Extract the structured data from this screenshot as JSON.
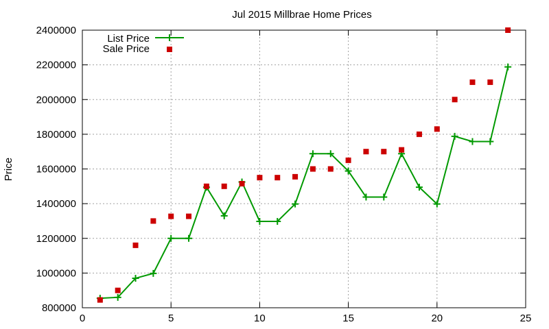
{
  "chart_data": {
    "type": "line",
    "title": "Jul 2015 Millbrae Home Prices",
    "xlabel": "",
    "ylabel": "Price",
    "xlim": [
      0,
      25
    ],
    "ylim": [
      800000,
      2400000
    ],
    "xticks": [
      0,
      5,
      10,
      15,
      20,
      25
    ],
    "yticks": [
      800000,
      1000000,
      1200000,
      1400000,
      1600000,
      1800000,
      2000000,
      2200000,
      2400000
    ],
    "xtick_labels": [
      "0",
      "5",
      "10",
      "15",
      "20",
      "25"
    ],
    "ytick_labels": [
      "800000",
      "1000000",
      "1200000",
      "1400000",
      "1600000",
      "1800000",
      "2000000",
      "2200000",
      "2400000"
    ],
    "grid": true,
    "legend_position": "top-left",
    "x": [
      1,
      2,
      3,
      4,
      5,
      6,
      7,
      8,
      9,
      10,
      11,
      12,
      13,
      14,
      15,
      16,
      17,
      18,
      19,
      20,
      21,
      22,
      23,
      24
    ],
    "series": [
      {
        "name": "List Price",
        "style": "line-with-plus-markers",
        "color": "#009900",
        "values": [
          855000,
          860000,
          970000,
          998000,
          1200000,
          1200000,
          1495000,
          1330000,
          1525000,
          1298000,
          1298000,
          1398000,
          1688000,
          1688000,
          1588000,
          1438000,
          1438000,
          1688000,
          1495000,
          1398000,
          1788000,
          1758000,
          1758000,
          2188000
        ]
      },
      {
        "name": "Sale Price",
        "style": "square-points",
        "color": "#cc0000",
        "values": [
          845000,
          900000,
          1160000,
          1300000,
          1327000,
          1327000,
          1500000,
          1500000,
          1515000,
          1550000,
          1550000,
          1555000,
          1600000,
          1600000,
          1650000,
          1700000,
          1700000,
          1710000,
          1800000,
          1830000,
          2000000,
          2100000,
          2100000,
          2400000
        ]
      }
    ]
  }
}
